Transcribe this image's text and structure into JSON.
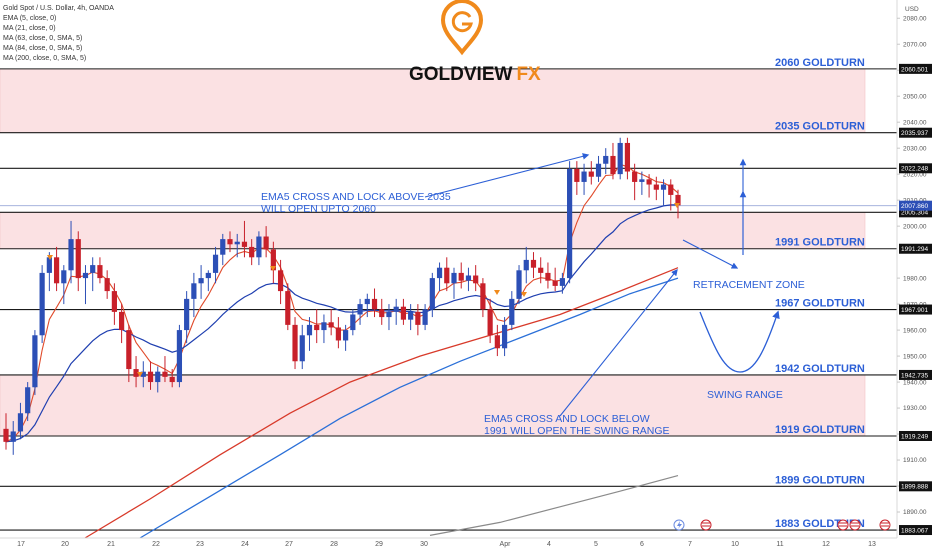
{
  "legend": [
    "Gold Spot / U.S. Dollar, 4h, OANDA",
    "EMA (5, close, 0)",
    "MA (21, close, 0)",
    "MA (63, close, 0, SMA, 5)",
    "MA (84, close, 0, SMA, 5)",
    "MA (200, close, 0, SMA, 5)"
  ],
  "brand": {
    "name": "GOLDVIEW",
    "suffix": "FX"
  },
  "currency": "USD",
  "colors": {
    "up": "#2c4fb6",
    "down": "#c8202a",
    "zone": "#fbe1e3",
    "label": "#2c5fd6",
    "ema5": "#e04a2a",
    "ma21": "#1f3fb0",
    "ma63": "#d83a2a",
    "ma84": "#2b70d8",
    "ma200": "#8a8a8a",
    "logo_orange": "#f08a1c"
  },
  "chart_data": {
    "type": "candlestick",
    "x_ticks": [
      "17",
      "20",
      "21",
      "22",
      "23",
      "24",
      "27",
      "28",
      "29",
      "30",
      "Apr",
      "4",
      "5",
      "6",
      "7",
      "10",
      "11",
      "12",
      "13"
    ],
    "y_ticks": [
      1890,
      1900,
      1910,
      1920,
      1930,
      1940,
      1950,
      1960,
      1970,
      1980,
      2000,
      2010,
      2020,
      2030,
      2040,
      2050,
      2060,
      2070,
      2080
    ],
    "ylim": [
      1880,
      2087
    ],
    "levels": [
      {
        "value": 2060.501,
        "tag": "2060.501",
        "label": "2060 GOLDTURN"
      },
      {
        "value": 2035.937,
        "tag": "2035.937",
        "label": "2035 GOLDTURN"
      },
      {
        "value": 2022.248,
        "tag": "2022.248",
        "label": ""
      },
      {
        "value": 2005.304,
        "tag": "2005.304",
        "label": ""
      },
      {
        "value": 1991.294,
        "tag": "1991.294",
        "label": "1991 GOLDTURN"
      },
      {
        "value": 1967.901,
        "tag": "1967.901",
        "label": "1967 GOLDTURN"
      },
      {
        "value": 1942.735,
        "tag": "1942.735",
        "label": "1942 GOLDTURN"
      },
      {
        "value": 1919.249,
        "tag": "1919.249",
        "label": "1919 GOLDTURN"
      },
      {
        "value": 1899.888,
        "tag": "1899.888",
        "label": "1899 GOLDTURN"
      },
      {
        "value": 1883.067,
        "tag": "1883.067",
        "label": "1883 GOLDTURN"
      }
    ],
    "last_price": {
      "value": 2007.86,
      "tag": "2007.860"
    },
    "zones": [
      {
        "top": 2060.501,
        "bottom": 2035.937
      },
      {
        "top": 2005.304,
        "bottom": 1991.294
      },
      {
        "top": 1942.735,
        "bottom": 1919.249
      }
    ],
    "annotations": [
      {
        "text": [
          "EMA5 CROSS AND LOCK ABOVE 2035",
          "WILL OPEN UPTO 2060"
        ]
      },
      {
        "text": [
          "RETRACEMENT ZONE"
        ]
      },
      {
        "text": [
          "SWING RANGE"
        ]
      },
      {
        "text": [
          "EMA5 CROSS AND LOCK BELOW",
          "1991 WILL OPEN THE SWING RANGE"
        ]
      }
    ],
    "candles": [
      [
        1922,
        1928,
        1914,
        1917
      ],
      [
        1917,
        1925,
        1912,
        1921
      ],
      [
        1921,
        1932,
        1918,
        1928
      ],
      [
        1928,
        1940,
        1925,
        1938
      ],
      [
        1938,
        1960,
        1935,
        1958
      ],
      [
        1958,
        1985,
        1955,
        1982
      ],
      [
        1982,
        1990,
        1975,
        1988
      ],
      [
        1988,
        1992,
        1975,
        1978
      ],
      [
        1978,
        1985,
        1970,
        1983
      ],
      [
        1983,
        2002,
        1978,
        1995
      ],
      [
        1995,
        1998,
        1975,
        1980
      ],
      [
        1980,
        1985,
        1970,
        1982
      ],
      [
        1982,
        1988,
        1975,
        1985
      ],
      [
        1985,
        1988,
        1978,
        1980
      ],
      [
        1980,
        1983,
        1972,
        1975
      ],
      [
        1975,
        1978,
        1962,
        1967
      ],
      [
        1967,
        1970,
        1955,
        1960
      ],
      [
        1960,
        1962,
        1940,
        1945
      ],
      [
        1945,
        1950,
        1938,
        1942
      ],
      [
        1942,
        1948,
        1938,
        1944
      ],
      [
        1944,
        1948,
        1937,
        1940
      ],
      [
        1940,
        1946,
        1936,
        1944
      ],
      [
        1944,
        1950,
        1940,
        1942
      ],
      [
        1942,
        1945,
        1938,
        1940
      ],
      [
        1940,
        1962,
        1938,
        1960
      ],
      [
        1960,
        1975,
        1955,
        1972
      ],
      [
        1972,
        1982,
        1965,
        1978
      ],
      [
        1978,
        1985,
        1972,
        1980
      ],
      [
        1980,
        1983,
        1975,
        1982
      ],
      [
        1982,
        1992,
        1978,
        1989
      ],
      [
        1989,
        1997,
        1985,
        1995
      ],
      [
        1995,
        1998,
        1990,
        1993
      ],
      [
        1993,
        1997,
        1988,
        1994
      ],
      [
        1994,
        2002,
        1988,
        1992
      ],
      [
        1992,
        1995,
        1985,
        1988
      ],
      [
        1988,
        1998,
        1985,
        1996
      ],
      [
        1996,
        2000,
        1988,
        1991
      ],
      [
        1991,
        1994,
        1978,
        1983
      ],
      [
        1983,
        1987,
        1970,
        1975
      ],
      [
        1975,
        1978,
        1960,
        1962
      ],
      [
        1962,
        1965,
        1945,
        1948
      ],
      [
        1948,
        1962,
        1945,
        1958
      ],
      [
        1958,
        1965,
        1952,
        1962
      ],
      [
        1962,
        1968,
        1955,
        1960
      ],
      [
        1960,
        1966,
        1955,
        1963
      ],
      [
        1963,
        1968,
        1958,
        1961
      ],
      [
        1961,
        1965,
        1953,
        1956
      ],
      [
        1956,
        1962,
        1952,
        1960
      ],
      [
        1960,
        1968,
        1958,
        1966
      ],
      [
        1966,
        1972,
        1962,
        1970
      ],
      [
        1970,
        1974,
        1965,
        1972
      ],
      [
        1972,
        1976,
        1965,
        1968
      ],
      [
        1968,
        1972,
        1962,
        1965
      ],
      [
        1965,
        1970,
        1960,
        1967
      ],
      [
        1967,
        1972,
        1962,
        1969
      ],
      [
        1969,
        1972,
        1962,
        1964
      ],
      [
        1964,
        1970,
        1960,
        1967
      ],
      [
        1967,
        1970,
        1958,
        1962
      ],
      [
        1962,
        1970,
        1960,
        1968
      ],
      [
        1968,
        1982,
        1965,
        1980
      ],
      [
        1980,
        1986,
        1975,
        1984
      ],
      [
        1984,
        1988,
        1975,
        1978
      ],
      [
        1978,
        1984,
        1972,
        1982
      ],
      [
        1982,
        1986,
        1976,
        1979
      ],
      [
        1979,
        1984,
        1975,
        1981
      ],
      [
        1981,
        1985,
        1975,
        1978
      ],
      [
        1978,
        1980,
        1965,
        1968
      ],
      [
        1968,
        1972,
        1955,
        1958
      ],
      [
        1958,
        1962,
        1950,
        1953
      ],
      [
        1953,
        1965,
        1950,
        1962
      ],
      [
        1962,
        1975,
        1960,
        1972
      ],
      [
        1972,
        1985,
        1970,
        1983
      ],
      [
        1983,
        1992,
        1978,
        1987
      ],
      [
        1987,
        1990,
        1980,
        1984
      ],
      [
        1984,
        1988,
        1978,
        1982
      ],
      [
        1982,
        1986,
        1976,
        1979
      ],
      [
        1979,
        1984,
        1975,
        1977
      ],
      [
        1977,
        1982,
        1974,
        1980
      ],
      [
        1980,
        2025,
        1978,
        2022
      ],
      [
        2022,
        2025,
        2012,
        2017
      ],
      [
        2017,
        2024,
        2012,
        2021
      ],
      [
        2021,
        2025,
        2016,
        2019
      ],
      [
        2019,
        2027,
        2017,
        2024
      ],
      [
        2024,
        2030,
        2020,
        2027
      ],
      [
        2027,
        2032,
        2018,
        2020
      ],
      [
        2020,
        2034,
        2018,
        2032
      ],
      [
        2032,
        2034,
        2018,
        2021
      ],
      [
        2021,
        2024,
        2010,
        2017
      ],
      [
        2017,
        2021,
        2012,
        2018
      ],
      [
        2018,
        2020,
        2011,
        2016
      ],
      [
        2016,
        2019,
        2010,
        2014
      ],
      [
        2014,
        2018,
        2008,
        2016
      ],
      [
        2016,
        2018,
        2006,
        2012
      ],
      [
        2012,
        2014,
        2003,
        2008
      ]
    ]
  },
  "icons": [
    "lightning-icon",
    "flag-icon"
  ]
}
